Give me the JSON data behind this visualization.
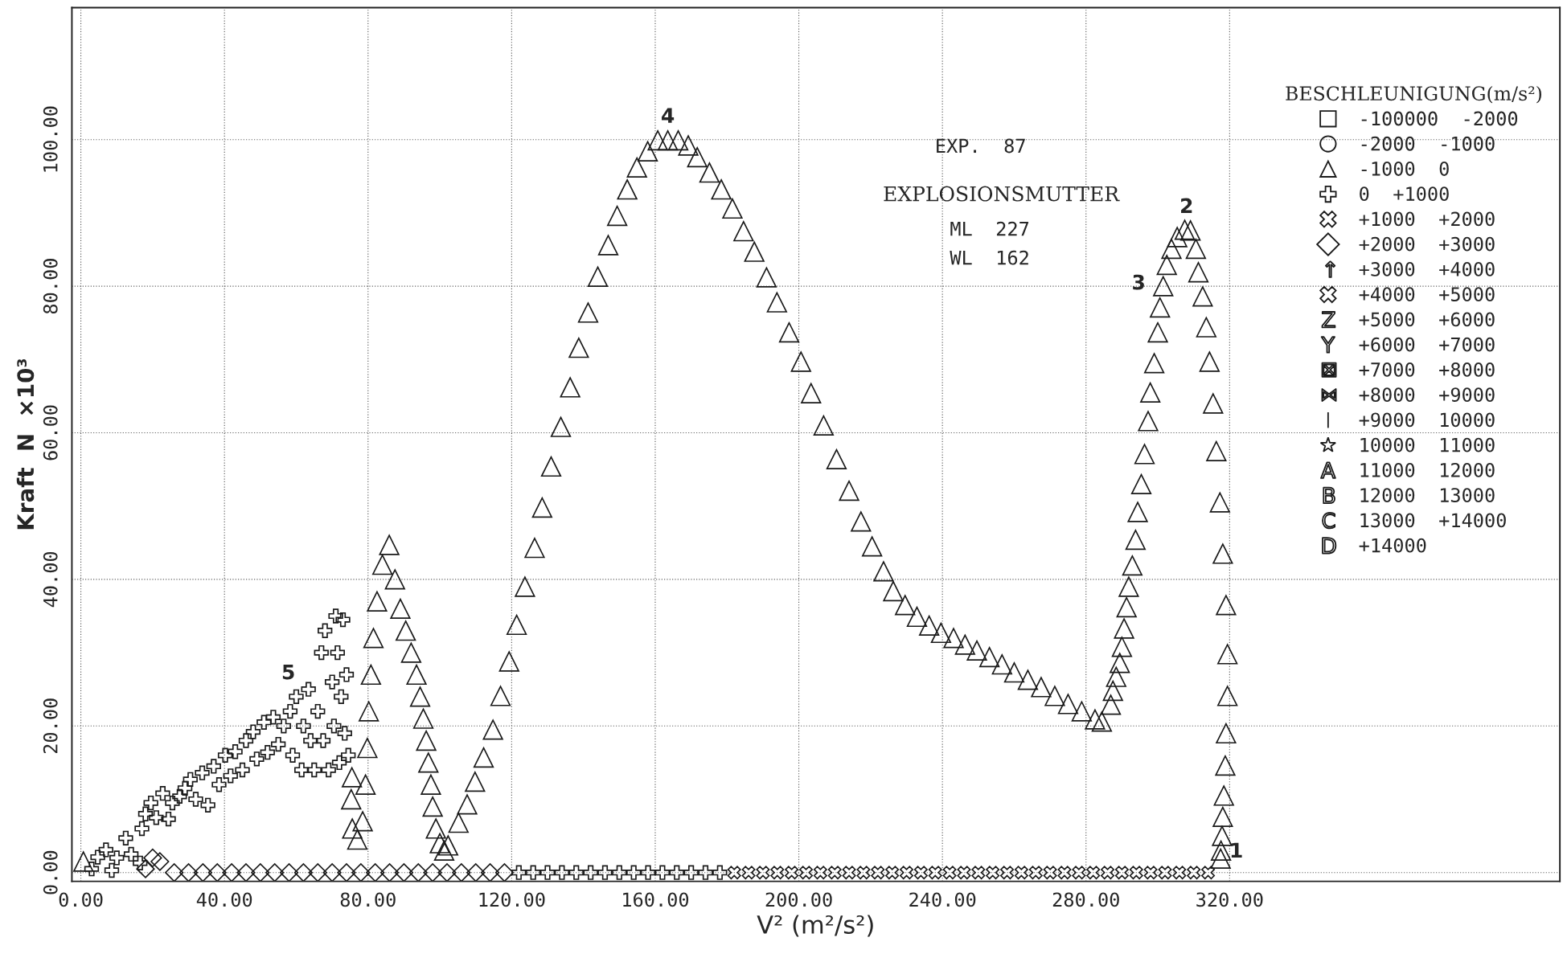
{
  "chart_data": {
    "type": "scatter",
    "xlabel": "V² (m²/s²)",
    "ylabel": "Kraft  N  ×10³",
    "legend_title": "BESCHLEUNIGUNG(m/s²)",
    "xlim": [
      -2.5,
      412
    ],
    "ylim": [
      -1.2,
      118
    ],
    "xticks": [
      {
        "value": 0,
        "label": "0.00"
      },
      {
        "value": 40,
        "label": "40.00"
      },
      {
        "value": 80,
        "label": "80.00"
      },
      {
        "value": 120,
        "label": "120.00"
      },
      {
        "value": 160,
        "label": "160.00"
      },
      {
        "value": 200,
        "label": "200.00"
      },
      {
        "value": 240,
        "label": "240.00"
      },
      {
        "value": 280,
        "label": "280.00"
      },
      {
        "value": 320,
        "label": "320.00"
      }
    ],
    "yticks": [
      {
        "value": 0,
        "label": "0.00"
      },
      {
        "value": 20,
        "label": "20.00"
      },
      {
        "value": 40,
        "label": "40.00"
      },
      {
        "value": 60,
        "label": "60.00"
      },
      {
        "value": 80,
        "label": "80.00"
      },
      {
        "value": 100,
        "label": "100.00"
      }
    ],
    "grid": true,
    "legend": "right",
    "annotations": [
      "EXP.  87",
      "EXPLOSIONSMUTTER",
      "ML  227",
      "WL  162",
      {
        "text": "1",
        "x": 317.5,
        "y": 1.9
      },
      {
        "text": "2",
        "x": 308,
        "y": 88
      },
      {
        "text": "3",
        "x": 301.5,
        "y": 80
      },
      {
        "text": "4",
        "x": 163.5,
        "y": 100
      },
      {
        "text": "5",
        "x": 63.4,
        "y": 25
      }
    ],
    "series": [
      {
        "name": "-100000  -2000",
        "marker": "square",
        "color": "#1a1a1a"
      },
      {
        "name": "-2000  -1000",
        "marker": "circle",
        "color": "#1a1a1a"
      },
      {
        "name": "-1000  0",
        "marker": "triangle",
        "color": "#1a1a1a",
        "x": [
          0.7,
          75.5,
          75.3,
          75.6,
          77,
          78.5,
          79.3,
          79.8,
          80.2,
          80.8,
          81.5,
          82.5,
          84,
          85.9,
          87.5,
          89,
          90.5,
          92,
          93.5,
          94.5,
          95.4,
          96.2,
          96.8,
          97.5,
          98,
          98.9,
          100,
          101.2,
          102.3,
          105.2,
          107.6,
          109.8,
          112.2,
          114.8,
          116.9,
          119.3,
          121.4,
          123.7,
          126.4,
          128.5,
          131.0,
          133.7,
          136.3,
          138.7,
          141.3,
          144.0,
          146.9,
          149.4,
          152.2,
          154.9,
          157.9,
          160.7,
          163.5,
          166.4,
          169.2,
          171.7,
          175.1,
          178.4,
          181.5,
          184.6,
          187.6,
          191.0,
          193.9,
          197.3,
          200.6,
          203.4,
          206.9,
          210.5,
          214.0,
          217.3,
          220.4,
          223.6,
          226.3,
          229.6,
          232.9,
          236.3,
          239.6,
          243.1,
          246.3,
          249.6,
          253.1,
          256.6,
          260,
          263.8,
          267.5,
          271.3,
          275,
          278.8,
          282.5,
          284.4,
          286.9,
          287.5,
          288.4,
          289.4,
          290,
          290.6,
          291.3,
          291.9,
          292.9,
          293.8,
          294.4,
          295.4,
          296.3,
          297.3,
          297.9,
          299.0,
          300,
          300.6,
          301.5,
          302.5,
          303.8,
          305.4,
          307.5,
          309.1,
          310.6,
          311.3,
          312.5,
          313.5,
          314.4,
          315.4,
          316.3,
          317.3,
          318.1,
          319,
          319.4,
          319.4,
          319,
          318.8,
          318.4,
          318.1,
          317.9,
          317.6,
          317.5
        ],
        "values": [
          1.5,
          13,
          10,
          6,
          4.5,
          7,
          12,
          17,
          22,
          27,
          32,
          37,
          42,
          44.7,
          40,
          36,
          33,
          30,
          27,
          24,
          21,
          18,
          15,
          12,
          9,
          6,
          4,
          3,
          3.7,
          6.8,
          9.3,
          12.4,
          15.7,
          19.5,
          24.1,
          28.8,
          33.8,
          39.0,
          44.3,
          49.8,
          55.4,
          60.8,
          66.2,
          71.6,
          76.4,
          81.3,
          85.6,
          89.6,
          93.2,
          96.2,
          98.4,
          99.9,
          99.9,
          99.9,
          99.2,
          97.6,
          95.5,
          93.2,
          90.6,
          87.5,
          84.7,
          81.2,
          77.8,
          73.7,
          69.7,
          65.4,
          61.0,
          56.4,
          52.1,
          47.9,
          44.5,
          41.1,
          38.4,
          36.5,
          34.9,
          33.7,
          32.7,
          32.0,
          31.1,
          30.3,
          29.4,
          28.4,
          27.3,
          26.3,
          25.3,
          24.1,
          23.0,
          22.0,
          20.9,
          20.6,
          22.9,
          24.8,
          26.7,
          28.6,
          30.8,
          33.3,
          36.2,
          39.0,
          41.9,
          45.4,
          49.2,
          53.0,
          57.1,
          61.6,
          65.5,
          69.5,
          73.7,
          77.1,
          80,
          82.9,
          85.1,
          86.7,
          87.7,
          87.6,
          85.1,
          81.9,
          78.6,
          74.4,
          69.7,
          64.0,
          57.5,
          50.5,
          43.5,
          36.5,
          29.8,
          24.1,
          19.0,
          14.6,
          10.5,
          7.6,
          5.0,
          3.0,
          1.9
        ]
      },
      {
        "name": "0  +1000",
        "marker": "cross",
        "color": "#1a1a1a",
        "x": [
          3,
          4.7,
          7,
          8.6,
          10,
          12.5,
          14,
          16.5,
          17,
          18,
          19.5,
          21,
          22.8,
          24.4,
          25.5,
          27.5,
          29,
          30.5,
          32,
          33.8,
          35.4,
          37,
          38.5,
          40.2,
          41.7,
          43,
          45,
          46,
          48,
          49,
          51,
          52,
          53.6,
          55,
          56.5,
          58.3,
          59,
          60,
          61.5,
          62,
          63.4,
          64,
          65,
          66,
          67,
          67.5,
          68,
          69,
          70,
          70.5,
          71,
          71.5,
          72,
          72.5,
          73,
          73.5,
          74,
          74.5,
          122,
          126,
          130,
          134,
          138,
          142,
          146,
          150,
          154,
          158,
          162,
          166,
          170,
          174,
          178
        ],
        "values": [
          0.5,
          2.1,
          3.1,
          0.3,
          2,
          4.7,
          2.5,
          1.3,
          6,
          8,
          9.5,
          7.5,
          10.8,
          7.3,
          9.5,
          10.4,
          11.5,
          12.7,
          10,
          13.6,
          9.2,
          14.5,
          12,
          16,
          13.2,
          16.5,
          14,
          18,
          19.2,
          15.5,
          20.5,
          16.4,
          21.2,
          17.5,
          20,
          22,
          16,
          24,
          14,
          20,
          25,
          18,
          14,
          22,
          30,
          18,
          33,
          14,
          26,
          20,
          35,
          30,
          15,
          24,
          34.5,
          19,
          27,
          16,
          0,
          0,
          0,
          0,
          0,
          0,
          0,
          0,
          0,
          0,
          0,
          0,
          0,
          0,
          0
        ]
      },
      {
        "name": "+1000  +2000",
        "color": "#1a1a1a",
        "x": [
          182,
          186,
          190,
          194,
          198,
          202,
          206,
          210,
          214,
          218,
          222,
          226,
          230,
          234,
          238,
          242,
          246,
          250,
          254,
          258,
          262,
          266,
          270,
          274,
          278,
          282,
          286,
          290,
          294,
          298,
          302,
          306,
          310,
          314
        ],
        "values": [
          0,
          0,
          0,
          0,
          0,
          0,
          0,
          0,
          0,
          0,
          0,
          0,
          0,
          0,
          0,
          0,
          0,
          0,
          0,
          0,
          0,
          0,
          0,
          0,
          0,
          0,
          0,
          0,
          0,
          0,
          0,
          0,
          0,
          0
        ]
      },
      {
        "name": "+2000  +3000",
        "marker": "diamond",
        "color": "#1a1a1a",
        "x": [
          18,
          20,
          22,
          26,
          30,
          34,
          38,
          42,
          46,
          50,
          54,
          58,
          62,
          66,
          70,
          74,
          78,
          82,
          86,
          90,
          94,
          98,
          102,
          106,
          110,
          114,
          118
        ],
        "values": [
          0.5,
          2,
          1.5,
          0,
          0,
          0,
          0,
          0,
          0,
          0,
          0,
          0,
          0,
          0,
          0,
          0,
          0,
          0,
          0,
          0,
          0,
          0,
          0,
          0,
          0,
          0,
          0
        ]
      },
      {
        "name": "+3000  +4000",
        "color": "#1a1a1a"
      },
      {
        "name": "+4000  +5000",
        "color": "#1a1a1a"
      },
      {
        "name": "+5000  +6000",
        "color": "#1a1a1a"
      },
      {
        "name": "+6000  +7000",
        "color": "#1a1a1a"
      },
      {
        "name": "+7000  +8000",
        "color": "#1a1a1a"
      },
      {
        "name": "+8000  +9000",
        "color": "#1a1a1a"
      },
      {
        "name": "+9000  10000",
        "color": "#1a1a1a"
      },
      {
        "name": "10000  11000",
        "marker": "star",
        "color": "#1a1a1a"
      },
      {
        "name": "11000  12000",
        "color": "#1a1a1a"
      },
      {
        "name": "12000  13000",
        "color": "#1a1a1a"
      },
      {
        "name": "13000  +14000",
        "color": "#1a1a1a"
      },
      {
        "name": "+14000",
        "color": "#1a1a1a"
      }
    ]
  }
}
